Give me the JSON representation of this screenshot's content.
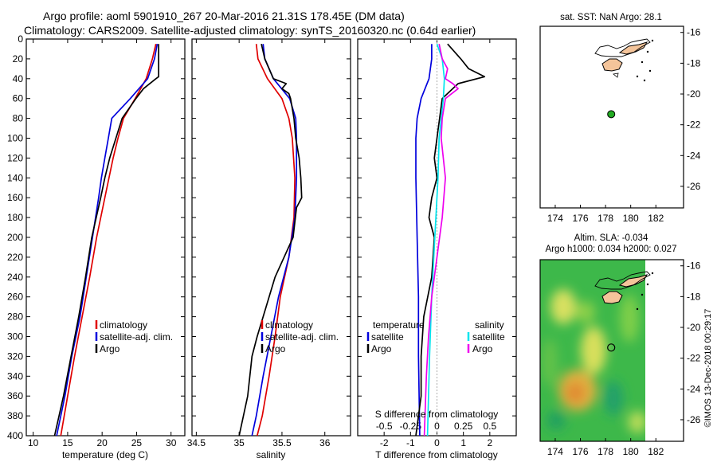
{
  "header": {
    "line1": "Argo profile: aoml 5901910_267 20-Mar-2016 21.31S 178.45E (DM data)",
    "line2": "Climatology: CARS2009. Satellite-adjusted climatology: synTS_20160320.nc (0.64d earlier)"
  },
  "colors": {
    "climatology": "#e00000",
    "satellite": "#0000dd",
    "argo": "#000000",
    "sal_satellite": "#00e5ee",
    "sal_argo": "#ee00ee",
    "land": "#f4c49a",
    "marker": "#22aa22"
  },
  "chart_data": [
    {
      "type": "line",
      "name": "temperature-profile",
      "xlabel": "temperature (deg C)",
      "ylabel": "depth",
      "xlim": [
        9,
        32
      ],
      "ylim": [
        400,
        0
      ],
      "xticks": [
        "10",
        "15",
        "20",
        "25",
        "30"
      ],
      "yticks": [
        "0",
        "20",
        "40",
        "60",
        "80",
        "100",
        "120",
        "140",
        "160",
        "180",
        "200",
        "220",
        "240",
        "260",
        "280",
        "300",
        "320",
        "340",
        "360",
        "380",
        "400"
      ],
      "legend": [
        "climatology",
        "satellite-adj. clim.",
        "Argo"
      ],
      "legend_position": "lower-right",
      "series": [
        {
          "name": "climatology",
          "depth": [
            5,
            20,
            40,
            60,
            80,
            100,
            120,
            140,
            160,
            200,
            240,
            280,
            320,
            360,
            400
          ],
          "values": [
            27.8,
            27.3,
            26.4,
            24.8,
            23.1,
            22.3,
            21.6,
            21.0,
            20.4,
            19.2,
            18.2,
            17.1,
            16.0,
            15.0,
            14.0
          ]
        },
        {
          "name": "satellite-adj. clim.",
          "depth": [
            5,
            20,
            40,
            60,
            80,
            100,
            120,
            140,
            160,
            200,
            240,
            280,
            320,
            360,
            400
          ],
          "values": [
            28.0,
            27.6,
            26.6,
            24.1,
            21.4,
            20.9,
            20.4,
            19.9,
            19.5,
            18.6,
            17.7,
            16.8,
            15.6,
            14.6,
            13.4
          ]
        },
        {
          "name": "Argo",
          "depth": [
            5,
            20,
            38,
            40,
            50,
            60,
            80,
            100,
            120,
            140,
            160,
            200,
            240,
            280,
            320,
            360,
            400
          ],
          "values": [
            28.2,
            28.2,
            28.2,
            27.8,
            26.0,
            24.9,
            22.9,
            22.0,
            21.1,
            20.4,
            19.8,
            18.5,
            17.6,
            16.6,
            15.5,
            14.4,
            13.1
          ]
        }
      ]
    },
    {
      "type": "line",
      "name": "salinity-profile",
      "xlabel": "salinity",
      "ylabel": "depth",
      "xlim": [
        34.45,
        36.3
      ],
      "ylim": [
        400,
        0
      ],
      "xticks": [
        "34.5",
        "35",
        "35.5",
        "36"
      ],
      "legend": [
        "climatology",
        "satellite-adj. clim.",
        "Argo"
      ],
      "legend_position": "lower-right",
      "series": [
        {
          "name": "climatology",
          "depth": [
            5,
            20,
            40,
            60,
            80,
            100,
            140,
            180,
            220,
            260,
            300,
            340,
            380,
            400
          ],
          "values": [
            35.2,
            35.22,
            35.33,
            35.5,
            35.58,
            35.62,
            35.65,
            35.64,
            35.58,
            35.48,
            35.42,
            35.35,
            35.27,
            35.21
          ]
        },
        {
          "name": "satellite-adj. clim.",
          "depth": [
            5,
            20,
            40,
            60,
            80,
            100,
            140,
            180,
            220,
            260,
            300,
            340,
            380,
            400
          ],
          "values": [
            35.28,
            35.3,
            35.4,
            35.59,
            35.66,
            35.67,
            35.67,
            35.65,
            35.58,
            35.46,
            35.37,
            35.28,
            35.2,
            35.15
          ]
        },
        {
          "name": "Argo",
          "depth": [
            5,
            20,
            30,
            40,
            45,
            50,
            55,
            60,
            80,
            100,
            120,
            140,
            160,
            170,
            200,
            240,
            280,
            300,
            320,
            360,
            400
          ],
          "values": [
            35.26,
            35.3,
            35.35,
            35.4,
            35.55,
            35.5,
            35.58,
            35.6,
            35.64,
            35.66,
            35.7,
            35.72,
            35.73,
            35.67,
            35.63,
            35.42,
            35.28,
            35.21,
            35.15,
            35.1,
            35.0
          ]
        }
      ]
    },
    {
      "type": "line",
      "name": "difference-from-climatology",
      "xlabel": "T difference from climatology",
      "xlabel_top": "S difference from climatology",
      "ylabel": "depth",
      "xlim": [
        -3,
        3
      ],
      "ylim": [
        400,
        0
      ],
      "xticks": [
        "-2",
        "-1",
        "0",
        "1",
        "2"
      ],
      "xticks_top": [
        "-0.5",
        "-0.25",
        "0",
        "0.25",
        "0.5"
      ],
      "legend_temperature": {
        "title": "temperature",
        "items": [
          "satellite",
          "Argo"
        ]
      },
      "legend_salinity": {
        "title": "salinity",
        "items": [
          "satellite",
          "Argo"
        ]
      },
      "series": [
        {
          "name": "temperature satellite",
          "depth": [
            5,
            20,
            40,
            60,
            80,
            100,
            140,
            200,
            260,
            320,
            400
          ],
          "values": [
            -0.2,
            -0.2,
            -0.3,
            -0.6,
            -0.75,
            -0.8,
            -0.8,
            -0.75,
            -0.7,
            -0.7,
            -0.65
          ]
        },
        {
          "name": "temperature Argo",
          "depth": [
            5,
            20,
            30,
            38,
            45,
            60,
            80,
            100,
            120,
            140,
            160,
            180,
            200,
            240,
            280,
            320,
            360,
            400
          ],
          "values": [
            0.4,
            0.9,
            1.2,
            1.8,
            0.8,
            0.2,
            0.1,
            0.0,
            -0.1,
            0.0,
            -0.2,
            -0.3,
            -0.1,
            -0.2,
            -0.5,
            -0.6,
            -0.6,
            -0.8
          ]
        },
        {
          "name": "salinity satellite",
          "depth": [
            5,
            20,
            40,
            60,
            80,
            100,
            140,
            200,
            260,
            320,
            400
          ],
          "values": [
            0.0,
            0.05,
            0.07,
            0.06,
            0.04,
            0.02,
            0.01,
            -0.02,
            -0.05,
            -0.07,
            -0.09
          ]
        },
        {
          "name": "salinity Argo",
          "depth": [
            5,
            20,
            30,
            40,
            45,
            50,
            60,
            80,
            100,
            140,
            180,
            220,
            260,
            300,
            340,
            400
          ],
          "values": [
            0.02,
            0.05,
            0.1,
            0.08,
            0.15,
            0.2,
            0.08,
            0.05,
            0.04,
            0.08,
            0.05,
            0.0,
            -0.05,
            -0.08,
            -0.1,
            -0.12
          ]
        }
      ]
    }
  ],
  "sst_map": {
    "title": "sat. SST: NaN Argo: 28.1",
    "xticks": [
      "174",
      "176",
      "178",
      "180",
      "182"
    ],
    "yticks": [
      "-16",
      "-18",
      "-20",
      "-22",
      "-24",
      "-26"
    ],
    "xlim": [
      172.8,
      184.2
    ],
    "ylim": [
      -27.4,
      -15.6
    ],
    "argo_lon": 178.45,
    "argo_lat": -21.31
  },
  "sla_map": {
    "title1": "Altim. SLA: -0.034",
    "title2": "Argo h1000: 0.034 h2000: 0.027",
    "xticks": [
      "174",
      "176",
      "178",
      "180",
      "182"
    ],
    "yticks": [
      "-16",
      "-18",
      "-20",
      "-22",
      "-24",
      "-26"
    ],
    "xlim": [
      172.8,
      184.2
    ],
    "ylim": [
      -27.4,
      -15.6
    ],
    "argo_lon": 178.45,
    "argo_lat": -21.31
  },
  "footer": {
    "credit": "©IMOS 13-Dec-2018 00:29:17"
  }
}
